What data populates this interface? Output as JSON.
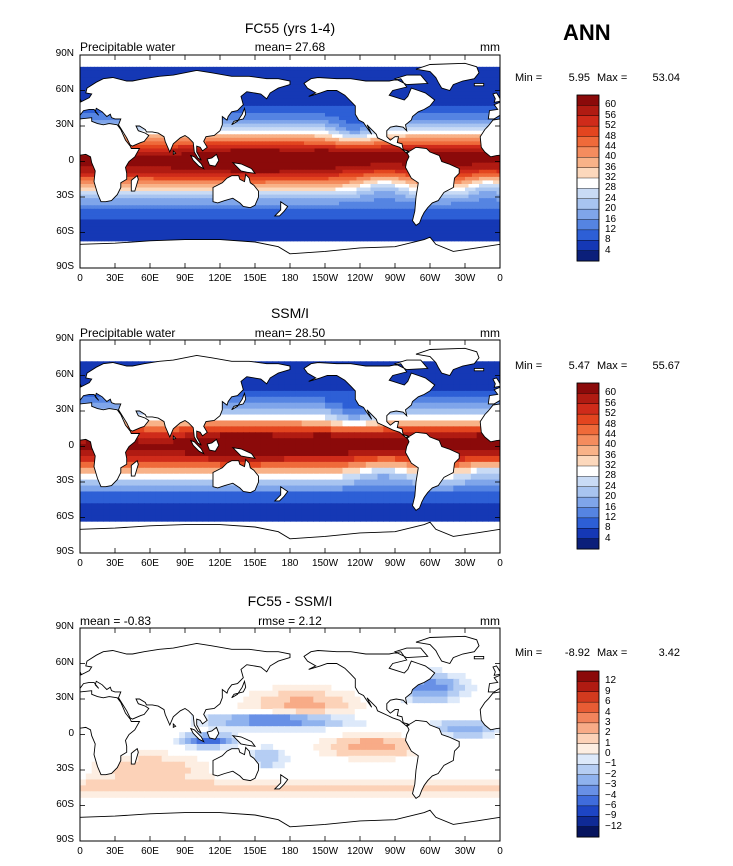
{
  "season": "ANN",
  "lat_ticks": [
    "90N",
    "60N",
    "30N",
    "0",
    "30S",
    "60S",
    "90S"
  ],
  "lon_ticks": [
    "0",
    "30E",
    "60E",
    "90E",
    "120E",
    "150E",
    "180",
    "150W",
    "120W",
    "90W",
    "60W",
    "30W",
    "0"
  ],
  "panels": [
    {
      "title": "FC55 (yrs 1-4)",
      "left_label": "Precipitable water",
      "center_label": "mean=  27.68",
      "units": "mm",
      "min_label": "Min =",
      "min_value": "5.95",
      "max_label": "Max =",
      "max_value": "53.04",
      "colorbar_labels": [
        "60",
        "56",
        "52",
        "48",
        "44",
        "40",
        "36",
        "32",
        "28",
        "24",
        "20",
        "16",
        "12",
        "8",
        "4"
      ],
      "colorbar_colors": [
        "#8b0a0a",
        "#b01b12",
        "#cf2b1a",
        "#e3451f",
        "#ef6a3a",
        "#f48c5e",
        "#f8b288",
        "#fcd8bc",
        "#ffffff",
        "#c9dbf5",
        "#a8c4f0",
        "#7fa5ea",
        "#5584e2",
        "#2d5fd6",
        "#1538b5",
        "#0b1f7a"
      ]
    },
    {
      "title": "SSM/I",
      "left_label": "Precipitable water",
      "center_label": "mean=  28.50",
      "units": "mm",
      "min_label": "Min =",
      "min_value": "5.47",
      "max_label": "Max =",
      "max_value": "55.67",
      "colorbar_labels": [
        "60",
        "56",
        "52",
        "48",
        "44",
        "40",
        "36",
        "32",
        "28",
        "24",
        "20",
        "16",
        "12",
        "8",
        "4"
      ],
      "colorbar_colors": [
        "#8b0a0a",
        "#b01b12",
        "#cf2b1a",
        "#e3451f",
        "#ef6a3a",
        "#f48c5e",
        "#f8b288",
        "#fcd8bc",
        "#ffffff",
        "#c9dbf5",
        "#a8c4f0",
        "#7fa5ea",
        "#5584e2",
        "#2d5fd6",
        "#1538b5",
        "#0b1f7a"
      ]
    },
    {
      "title": "FC55 - SSM/I",
      "left_label": "mean =   -0.83",
      "center_label": "rmse =   2.12",
      "units": "mm",
      "min_label": "Min =",
      "min_value": "-8.92",
      "max_label": "Max =",
      "max_value": "3.42",
      "colorbar_labels": [
        "12",
        "9",
        "6",
        "4",
        "3",
        "2",
        "1",
        "0",
        "−1",
        "−2",
        "−3",
        "−4",
        "−6",
        "−9",
        "−12"
      ],
      "colorbar_colors": [
        "#8b0a0a",
        "#b01b12",
        "#d23a1e",
        "#e85c34",
        "#f2845c",
        "#f8ab87",
        "#fcd2b8",
        "#fdeee2",
        "#dde9fa",
        "#b5cdf3",
        "#8fb2ee",
        "#6890e6",
        "#3f6cdc",
        "#1d45c4",
        "#0f2a95",
        "#06145e"
      ]
    }
  ]
}
